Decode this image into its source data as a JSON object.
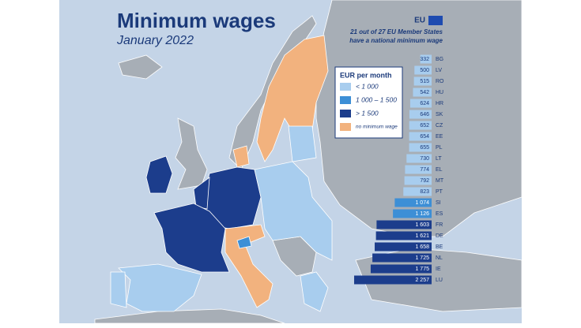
{
  "header": {
    "title": "Minimum wages",
    "subtitle": "January 2022",
    "badge": "EU",
    "note": [
      "21 out of 27 EU Member States",
      "have a national minimum wage"
    ]
  },
  "legend": {
    "title": "EUR per month",
    "items": [
      {
        "label": "< 1 000",
        "color": "#a8cdee"
      },
      {
        "label": "1 000 – 1 500",
        "color": "#3d8fd6"
      },
      {
        "label": "> 1 500",
        "color": "#1c3d8c"
      },
      {
        "label": "no minimum wage",
        "color": "#f2b27e"
      }
    ]
  },
  "chart_data": {
    "type": "bar",
    "orientation": "horizontal",
    "categories": [
      "BG",
      "LV",
      "RO",
      "HU",
      "HR",
      "SK",
      "CZ",
      "EE",
      "PL",
      "LT",
      "EL",
      "MT",
      "PT",
      "SI",
      "ES",
      "FR",
      "DE",
      "BE",
      "NL",
      "IE",
      "LU"
    ],
    "values": [
      332,
      500,
      515,
      542,
      624,
      646,
      652,
      654,
      655,
      730,
      774,
      792,
      823,
      1074,
      1126,
      1603,
      1621,
      1658,
      1725,
      1775,
      2257
    ],
    "value_labels": [
      "332",
      "500",
      "515",
      "542",
      "624",
      "646",
      "652",
      "654",
      "655",
      "730",
      "774",
      "792",
      "823",
      "1 074",
      "1 126",
      "1 603",
      "1 621",
      "1 658",
      "1 725",
      "1 775",
      "2 257"
    ],
    "colors": [
      "#a8cdee",
      "#a8cdee",
      "#a8cdee",
      "#a8cdee",
      "#a8cdee",
      "#a8cdee",
      "#a8cdee",
      "#a8cdee",
      "#a8cdee",
      "#a8cdee",
      "#a8cdee",
      "#a8cdee",
      "#a8cdee",
      "#3d8fd6",
      "#3d8fd6",
      "#1c3d8c",
      "#1c3d8c",
      "#1c3d8c",
      "#1c3d8c",
      "#1c3d8c",
      "#1c3d8c"
    ]
  }
}
